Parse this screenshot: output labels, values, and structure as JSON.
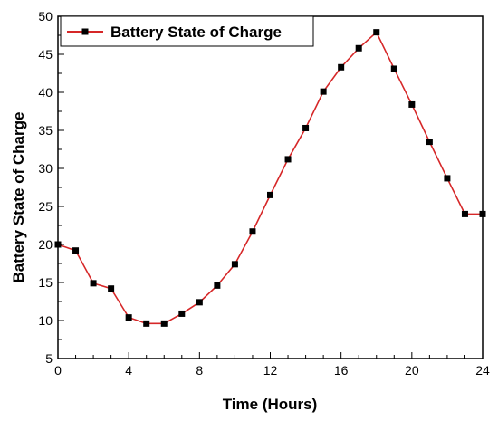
{
  "chart_data": {
    "type": "line",
    "xlabel": "Time (Hours)",
    "ylabel": "Battery State of Charge",
    "xlim": [
      0,
      24
    ],
    "ylim": [
      5,
      50
    ],
    "x_ticks": [
      "0",
      "4",
      "8",
      "12",
      "16",
      "20",
      "24"
    ],
    "y_ticks": [
      "5",
      "10",
      "15",
      "20",
      "25",
      "30",
      "35",
      "40",
      "45",
      "50"
    ],
    "grid": false,
    "legend_position": "top-left",
    "series": [
      {
        "name": "Battery State of Charge",
        "color": "#d62728",
        "marker_color": "#000000",
        "marker": "square",
        "x": [
          0,
          1,
          2,
          3,
          4,
          5,
          6,
          7,
          8,
          9,
          10,
          11,
          12,
          13,
          14,
          15,
          16,
          17,
          18,
          19,
          20,
          21,
          22,
          23,
          24
        ],
        "y": [
          20.0,
          19.2,
          14.9,
          14.2,
          10.4,
          9.6,
          9.6,
          10.9,
          12.4,
          14.6,
          17.4,
          21.7,
          26.5,
          31.2,
          35.3,
          40.1,
          43.3,
          45.8,
          47.9,
          43.1,
          38.4,
          33.5,
          28.7,
          24.0,
          24.0
        ]
      }
    ]
  }
}
